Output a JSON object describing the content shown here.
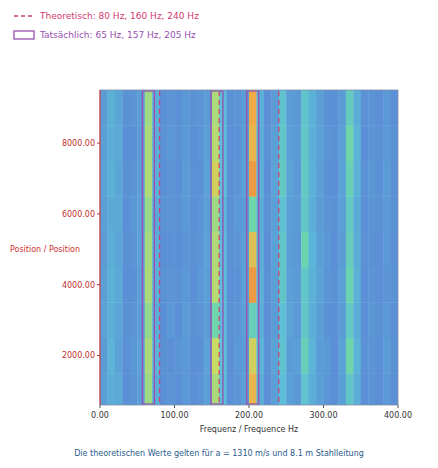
{
  "chart_data": {
    "type": "heatmap",
    "x_label": "Frequenz / Frequence  Hz",
    "y_label": "Position / Position",
    "caption": "Die theoretischen Werte gelten für a = 1310 m/s und 8.1 m Stahlleitung",
    "theoretical": {
      "label": "Theoretisch: 80 Hz, 160 Hz, 240 Hz",
      "values": [
        80,
        160,
        240
      ],
      "color": "#d23c6e",
      "line_style": "dashed"
    },
    "actual": {
      "label": "Tatsächlich: 65 Hz, 157 Hz, 205 Hz",
      "values": [
        65,
        157,
        205
      ],
      "color": "#9a4fb0"
    },
    "xlim": [
      0,
      400
    ],
    "ylim": [
      600,
      9500
    ],
    "xticks": [
      {
        "value": 0,
        "label": "0.00"
      },
      {
        "value": 100,
        "label": "100.00"
      },
      {
        "value": 200,
        "label": "200.00"
      },
      {
        "value": 300,
        "label": "300.00"
      },
      {
        "value": 400,
        "label": "400.00"
      }
    ],
    "yticks": [
      {
        "value": 2000,
        "label": "2000.00"
      },
      {
        "value": 4000,
        "label": "4000.00"
      },
      {
        "value": 6000,
        "label": "6000.00"
      },
      {
        "value": 8000,
        "label": "8000.00"
      }
    ],
    "zlim": [
      0,
      1
    ],
    "x_edges": [
      0,
      10,
      20,
      30,
      40,
      50,
      60,
      70,
      80,
      90,
      100,
      110,
      120,
      130,
      140,
      150,
      160,
      170,
      180,
      190,
      200,
      210,
      220,
      230,
      240,
      250,
      260,
      270,
      280,
      290,
      300,
      310,
      320,
      330,
      340,
      350,
      360,
      370,
      380,
      390,
      400
    ],
    "y_edges": [
      600,
      1500,
      2500,
      3500,
      4500,
      5500,
      6500,
      7500,
      8500,
      9500
    ],
    "cells": [
      [
        0.35,
        0.4,
        0.38,
        0.3,
        0.32,
        0.35,
        0.68,
        0.4,
        0.3,
        0.32,
        0.3,
        0.33,
        0.3,
        0.32,
        0.35,
        0.7,
        0.45,
        0.3,
        0.32,
        0.35,
        0.85,
        0.4,
        0.3,
        0.35,
        0.45,
        0.35,
        0.33,
        0.48,
        0.4,
        0.35,
        0.32,
        0.3,
        0.35,
        0.5,
        0.4,
        0.3,
        0.32,
        0.3,
        0.33,
        0.3
      ],
      [
        0.34,
        0.42,
        0.36,
        0.3,
        0.33,
        0.36,
        0.7,
        0.42,
        0.31,
        0.3,
        0.32,
        0.33,
        0.3,
        0.31,
        0.36,
        0.75,
        0.46,
        0.3,
        0.33,
        0.34,
        0.78,
        0.42,
        0.31,
        0.36,
        0.48,
        0.34,
        0.35,
        0.55,
        0.42,
        0.34,
        0.33,
        0.3,
        0.36,
        0.6,
        0.42,
        0.31,
        0.32,
        0.3,
        0.34,
        0.31
      ],
      [
        0.36,
        0.4,
        0.37,
        0.31,
        0.32,
        0.34,
        0.66,
        0.4,
        0.3,
        0.33,
        0.3,
        0.34,
        0.31,
        0.32,
        0.34,
        0.6,
        0.44,
        0.31,
        0.32,
        0.35,
        0.55,
        0.4,
        0.3,
        0.34,
        0.46,
        0.36,
        0.33,
        0.5,
        0.4,
        0.35,
        0.31,
        0.3,
        0.34,
        0.52,
        0.4,
        0.3,
        0.33,
        0.31,
        0.33,
        0.3
      ],
      [
        0.35,
        0.41,
        0.38,
        0.3,
        0.31,
        0.35,
        0.7,
        0.41,
        0.31,
        0.32,
        0.31,
        0.33,
        0.3,
        0.33,
        0.35,
        0.72,
        0.45,
        0.3,
        0.31,
        0.36,
        0.9,
        0.41,
        0.31,
        0.35,
        0.5,
        0.35,
        0.34,
        0.5,
        0.41,
        0.36,
        0.32,
        0.31,
        0.35,
        0.58,
        0.41,
        0.3,
        0.32,
        0.3,
        0.32,
        0.31
      ],
      [
        0.34,
        0.4,
        0.37,
        0.31,
        0.32,
        0.36,
        0.69,
        0.4,
        0.3,
        0.31,
        0.3,
        0.32,
        0.31,
        0.32,
        0.36,
        0.71,
        0.44,
        0.31,
        0.32,
        0.35,
        0.82,
        0.4,
        0.3,
        0.36,
        0.5,
        0.34,
        0.33,
        0.58,
        0.42,
        0.35,
        0.33,
        0.3,
        0.34,
        0.54,
        0.4,
        0.31,
        0.31,
        0.3,
        0.33,
        0.3
      ],
      [
        0.35,
        0.39,
        0.38,
        0.3,
        0.33,
        0.35,
        0.67,
        0.39,
        0.31,
        0.32,
        0.31,
        0.33,
        0.3,
        0.32,
        0.35,
        0.68,
        0.43,
        0.3,
        0.33,
        0.34,
        0.6,
        0.39,
        0.31,
        0.35,
        0.47,
        0.35,
        0.34,
        0.5,
        0.4,
        0.34,
        0.32,
        0.31,
        0.35,
        0.52,
        0.39,
        0.3,
        0.32,
        0.31,
        0.33,
        0.31
      ],
      [
        0.36,
        0.41,
        0.37,
        0.31,
        0.32,
        0.35,
        0.71,
        0.41,
        0.3,
        0.32,
        0.3,
        0.34,
        0.31,
        0.31,
        0.36,
        0.78,
        0.46,
        0.31,
        0.32,
        0.36,
        0.9,
        0.41,
        0.3,
        0.36,
        0.52,
        0.36,
        0.33,
        0.52,
        0.41,
        0.35,
        0.31,
        0.3,
        0.36,
        0.56,
        0.41,
        0.31,
        0.33,
        0.3,
        0.34,
        0.3
      ],
      [
        0.35,
        0.4,
        0.38,
        0.3,
        0.31,
        0.34,
        0.7,
        0.4,
        0.31,
        0.33,
        0.31,
        0.33,
        0.3,
        0.32,
        0.35,
        0.72,
        0.45,
        0.3,
        0.31,
        0.35,
        0.85,
        0.4,
        0.31,
        0.35,
        0.5,
        0.35,
        0.34,
        0.5,
        0.4,
        0.36,
        0.32,
        0.31,
        0.35,
        0.6,
        0.42,
        0.3,
        0.32,
        0.31,
        0.33,
        0.31
      ],
      [
        0.34,
        0.41,
        0.37,
        0.31,
        0.32,
        0.35,
        0.68,
        0.41,
        0.3,
        0.32,
        0.3,
        0.33,
        0.31,
        0.32,
        0.34,
        0.7,
        0.44,
        0.31,
        0.32,
        0.34,
        0.88,
        0.41,
        0.3,
        0.34,
        0.48,
        0.34,
        0.33,
        0.49,
        0.41,
        0.35,
        0.31,
        0.3,
        0.34,
        0.53,
        0.4,
        0.31,
        0.32,
        0.3,
        0.33,
        0.3
      ]
    ]
  }
}
